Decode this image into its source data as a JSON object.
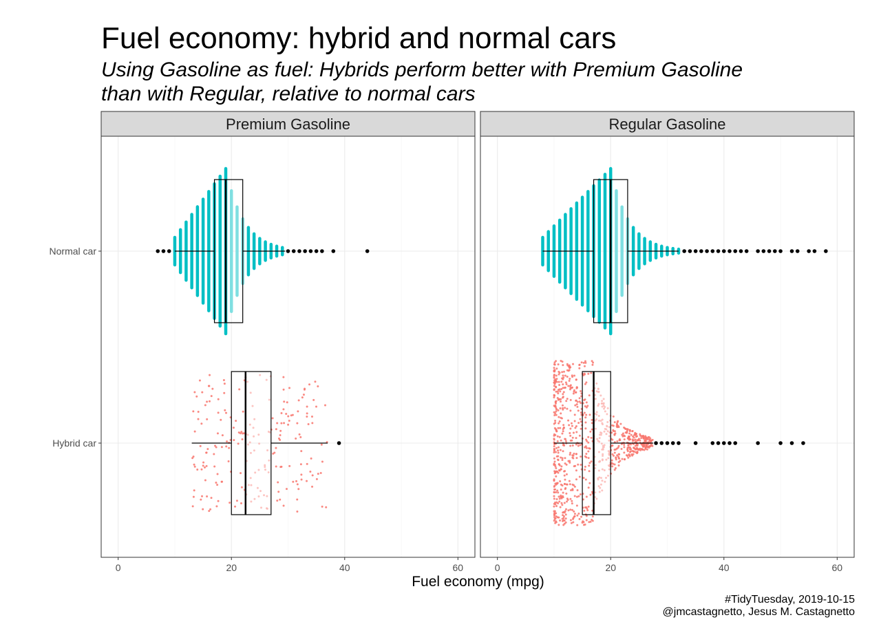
{
  "title": "Fuel economy: hybrid and normal cars",
  "subtitle_lines": [
    "Using Gasoline as fuel: Hybrids perform better with Premium Gasoline",
    "than with Regular, relative to normal cars"
  ],
  "caption_lines": [
    "#TidyTuesday, 2019-10-15",
    "@jmcastagnetto, Jesus M. Castagnetto"
  ],
  "chart_data": {
    "type": "box",
    "xlabel": "Fuel economy (mpg)",
    "ylabel": "",
    "xlim": [
      -3,
      63
    ],
    "x_ticks": [
      0,
      20,
      40,
      60
    ],
    "y_categories": [
      "Normal car",
      "Hybrid car"
    ],
    "grid": true,
    "legend": "none",
    "colors": {
      "normal": "#00BFC4",
      "normal_light": "#7FDFE1",
      "hybrid": "#F8766D",
      "hybrid_light": "#FBBAB6",
      "outlier": "#000000",
      "strip_fill": "#D9D9D9"
    },
    "panels": [
      {
        "name": "Premium Gasoline",
        "groups": [
          {
            "category": "Normal car",
            "whisker_low": 10,
            "q1": 17,
            "median": 19,
            "q3": 22,
            "whisker_high": 29.5,
            "outliers": [
              7,
              8,
              9,
              30,
              31,
              32,
              33,
              34,
              35,
              36,
              38,
              44
            ]
          },
          {
            "category": "Hybrid car",
            "whisker_low": 13,
            "q1": 20,
            "median": 22.5,
            "q3": 27,
            "whisker_high": 37,
            "outliers": [
              39
            ]
          }
        ]
      },
      {
        "name": "Regular Gasoline",
        "groups": [
          {
            "category": "Normal car",
            "whisker_low": 8,
            "q1": 17,
            "median": 20,
            "q3": 23,
            "whisker_high": 32,
            "outliers": [
              33,
              34,
              35,
              36,
              37,
              38,
              39,
              40,
              41,
              42,
              43,
              44,
              46,
              47,
              48,
              49,
              50,
              52,
              53,
              55,
              56,
              58
            ]
          },
          {
            "category": "Hybrid car",
            "whisker_low": 10,
            "q1": 15,
            "median": 17,
            "q3": 20,
            "whisker_high": 27.5,
            "outliers": [
              28,
              29,
              30,
              31,
              32,
              35,
              38,
              39,
              40,
              41,
              42,
              46,
              50,
              52,
              54
            ]
          }
        ]
      }
    ]
  }
}
